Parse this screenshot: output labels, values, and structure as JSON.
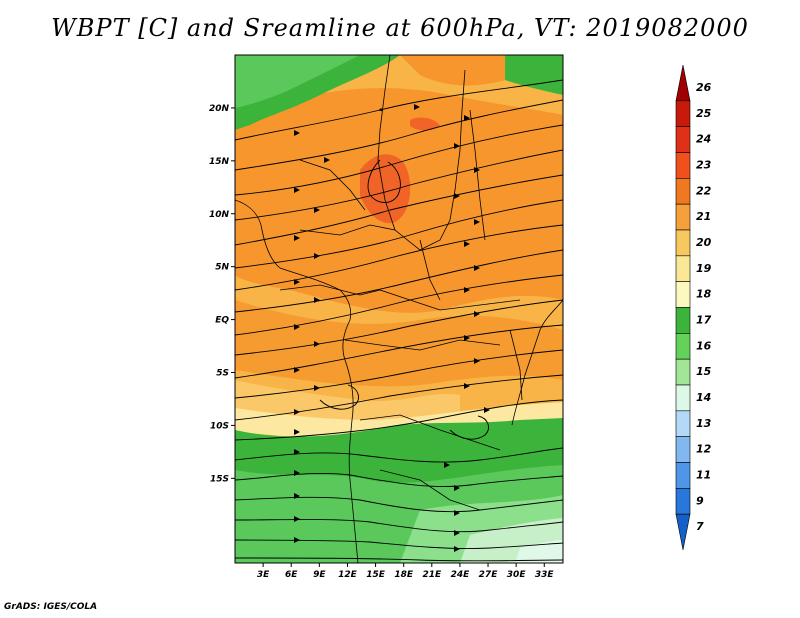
{
  "title": "WBPT [C] and Sreamline at 600hPa, VT: 2019082000",
  "footer": "GrADS: IGES/COLA",
  "map": {
    "lat_range": [
      -23,
      25
    ],
    "lon_range": [
      0,
      35
    ],
    "lat_ticks": [
      {
        "value": 20,
        "label": "20N"
      },
      {
        "value": 15,
        "label": "15N"
      },
      {
        "value": 10,
        "label": "10N"
      },
      {
        "value": 5,
        "label": "5N"
      },
      {
        "value": 0,
        "label": "EQ"
      },
      {
        "value": -5,
        "label": "5S"
      },
      {
        "value": -10,
        "label": "10S"
      },
      {
        "value": -15,
        "label": "15S"
      }
    ],
    "lon_ticks": [
      {
        "value": 3,
        "label": "3E"
      },
      {
        "value": 6,
        "label": "6E"
      },
      {
        "value": 9,
        "label": "9E"
      },
      {
        "value": 12,
        "label": "12E"
      },
      {
        "value": 15,
        "label": "15E"
      },
      {
        "value": 18,
        "label": "18E"
      },
      {
        "value": 21,
        "label": "21E"
      },
      {
        "value": 24,
        "label": "24E"
      },
      {
        "value": 27,
        "label": "27E"
      },
      {
        "value": 30,
        "label": "30E"
      },
      {
        "value": 33,
        "label": "33E"
      }
    ]
  },
  "colorbar": {
    "levels": [
      "26",
      "25",
      "24",
      "23",
      "22",
      "21",
      "20",
      "19",
      "18",
      "17",
      "16",
      "15",
      "14",
      "13",
      "12",
      "11",
      "9",
      "7"
    ],
    "colors": [
      "#a00000",
      "#c81a0a",
      "#e0301a",
      "#f0501e",
      "#f07820",
      "#f6a03c",
      "#f8c860",
      "#fae896",
      "#fcf8c0",
      "#3cb43c",
      "#64d25a",
      "#a0e696",
      "#dcf8e6",
      "#b4d8f8",
      "#82b8f0",
      "#5096e6",
      "#2878dc",
      "#1460c8"
    ]
  },
  "field_colors": {
    "c23": "#f06428",
    "c22": "#f6962c",
    "c21": "#f8b446",
    "c20": "#fac868",
    "c19": "#fce8a0",
    "c18": "#3cb43c",
    "c17": "#5ac85a",
    "c16": "#8ce08c",
    "c15": "#c8f0c8",
    "c14": "#e0f8e8"
  }
}
